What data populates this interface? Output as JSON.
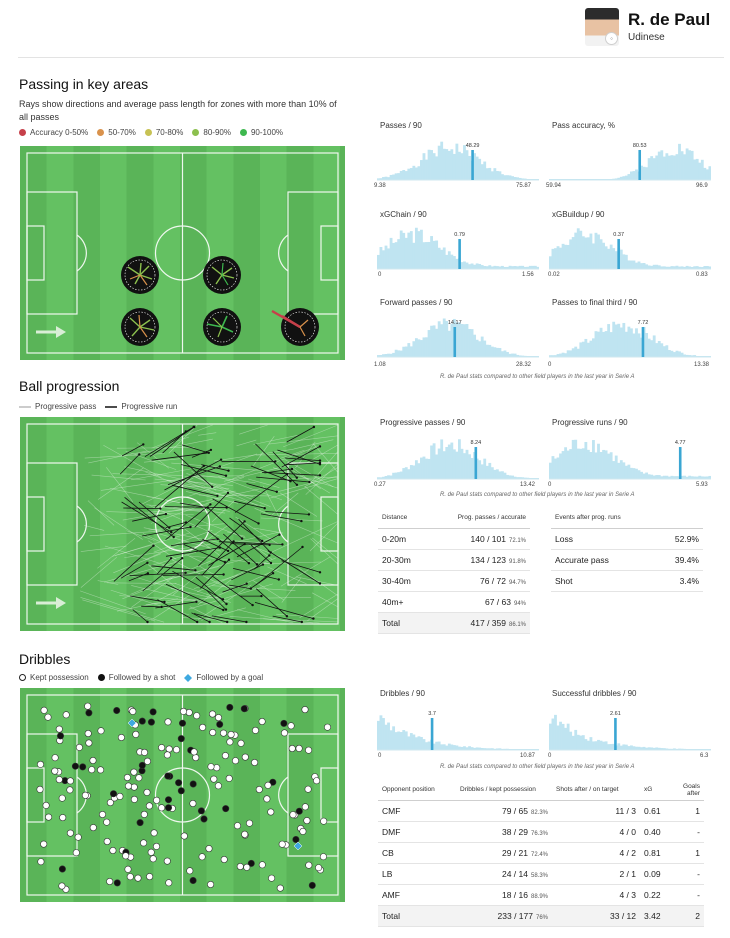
{
  "player": {
    "name": "R. de Paul",
    "club": "Udinese"
  },
  "passing": {
    "title": "Passing in key areas",
    "desc_lines": [
      "Rays show directions and average pass length for zones with more than 10% of",
      "all passes"
    ],
    "legend": [
      {
        "label": "Accuracy 0-50%",
        "color": "#c6404a"
      },
      {
        "label": "50-70%",
        "color": "#d9924c"
      },
      {
        "label": "70-80%",
        "color": "#c7c254"
      },
      {
        "label": "80-90%",
        "color": "#8cc04e"
      },
      {
        "label": "90-100%",
        "color": "#3eb84f"
      }
    ]
  },
  "histograms": {
    "passes": {
      "label": "Passes / 90",
      "min": "9.38",
      "max": "75.87",
      "value": "48.29",
      "pos": 0.59
    },
    "pass_acc": {
      "label": "Pass accuracy, %",
      "min": "59.94",
      "max": "96.9",
      "value": "80.53",
      "pos": 0.56
    },
    "xgchain": {
      "label": "xGChain / 90",
      "min": "0",
      "max": "1.56",
      "value": "0.79",
      "pos": 0.51
    },
    "xgbuildup": {
      "label": "xGBuildup / 90",
      "min": "0.02",
      "max": "0.83",
      "value": "0.37",
      "pos": 0.43
    },
    "forward": {
      "label": "Forward passes / 90",
      "min": "1.08",
      "max": "28.32",
      "value": "14.17",
      "pos": 0.48
    },
    "final_third": {
      "label": "Passes to final third / 90",
      "min": "0",
      "max": "13.38",
      "value": "7.72",
      "pos": 0.58
    },
    "prog_passes": {
      "label": "Progressive passes / 90",
      "min": "0.27",
      "max": "13.42",
      "value": "8.24",
      "pos": 0.61
    },
    "prog_runs": {
      "label": "Progressive runs / 90",
      "min": "0",
      "max": "5.93",
      "value": "4.77",
      "pos": 0.81
    },
    "dribbles": {
      "label": "Dribbles / 90",
      "min": "0",
      "max": "10.87",
      "value": "3.7",
      "pos": 0.34
    },
    "succ_dribbles": {
      "label": "Successful dribbles / 90",
      "min": "0",
      "max": "6.3",
      "value": "2.61",
      "pos": 0.41
    }
  },
  "note": "R. de Paul stats compared to other field players in the last year in Serie A",
  "progression": {
    "title": "Ball progression",
    "legend": [
      "Progressive pass",
      "Progressive run"
    ],
    "table": {
      "headers": [
        "Distance",
        "Prog. passes / accurate"
      ],
      "rows": [
        {
          "label": "0-20m",
          "value": "140 / 101",
          "pct": "72.1%"
        },
        {
          "label": "20-30m",
          "value": "134 / 123",
          "pct": "91.8%"
        },
        {
          "label": "30-40m",
          "value": "76 / 72",
          "pct": "94.7%"
        },
        {
          "label": "40m+",
          "value": "67 / 63",
          "pct": "94%"
        },
        {
          "label": "Total",
          "value": "417 / 359",
          "pct": "86.1%"
        }
      ]
    },
    "events": {
      "header": "Events after prog. runs",
      "rows": [
        {
          "label": "Loss",
          "value": "52.9%"
        },
        {
          "label": "Accurate pass",
          "value": "39.4%"
        },
        {
          "label": "Shot",
          "value": "3.4%"
        }
      ]
    }
  },
  "dribbles": {
    "title": "Dribbles",
    "legend": [
      "Kept possession",
      "Followed by a shot",
      "Followed by a goal"
    ],
    "table": {
      "headers": [
        "Opponent position",
        "Dribbles / kept possession",
        "Shots after / on target",
        "xG",
        "Goals after"
      ],
      "rows": [
        {
          "pos": "CMF",
          "dribbles": "79 / 65",
          "pct": "82.3%",
          "shots": "11 / 3",
          "xg": "0.61",
          "goals": "1"
        },
        {
          "pos": "DMF",
          "dribbles": "38 / 29",
          "pct": "76.3%",
          "shots": "4 / 0",
          "xg": "0.40",
          "goals": "-"
        },
        {
          "pos": "CB",
          "dribbles": "29 / 21",
          "pct": "72.4%",
          "shots": "4 / 2",
          "xg": "0.81",
          "goals": "1"
        },
        {
          "pos": "LB",
          "dribbles": "24 / 14",
          "pct": "58.3%",
          "shots": "2 / 1",
          "xg": "0.09",
          "goals": "-"
        },
        {
          "pos": "AMF",
          "dribbles": "18 / 16",
          "pct": "88.9%",
          "shots": "4 / 3",
          "xg": "0.22",
          "goals": "-"
        },
        {
          "pos": "Total",
          "dribbles": "233 / 177",
          "pct": "76%",
          "shots": "33 / 12",
          "xg": "3.42",
          "goals": "2"
        }
      ]
    }
  }
}
